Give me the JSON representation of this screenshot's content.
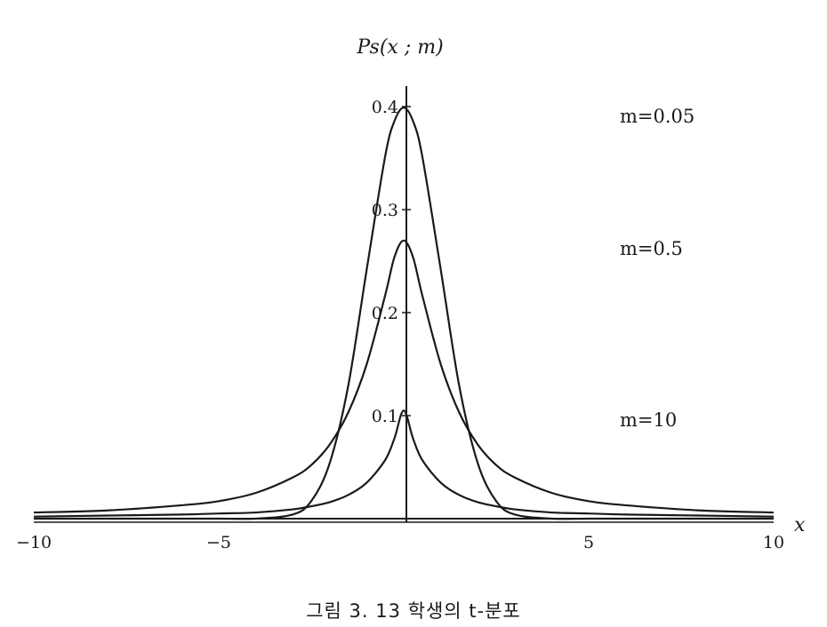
{
  "caption": "그림 3. 13 학생의 t-분포",
  "chart_data": {
    "type": "line",
    "title": "",
    "xlabel": "x",
    "ylabel": "Ps(x ; m)",
    "xlim": [
      -10,
      10
    ],
    "ylim": [
      0,
      0.4
    ],
    "x_ticks": [
      -10,
      -5,
      5,
      10
    ],
    "x_tick_labels": [
      "−10",
      "−5",
      "5",
      "10"
    ],
    "y_ticks": [
      0.1,
      0.2,
      0.3,
      0.4
    ],
    "y_tick_labels": [
      "0.1",
      "0.2",
      "0.3",
      "0.4"
    ],
    "grid": false,
    "x": [
      -10,
      -8,
      -6,
      -5,
      -4,
      -3,
      -2.5,
      -2,
      -1.5,
      -1,
      -0.5,
      -0.25,
      0,
      0.25,
      0.5,
      1,
      1.5,
      2,
      2.5,
      3,
      4,
      5,
      6,
      8,
      10
    ],
    "series": [
      {
        "name": "m=0.05",
        "label_position": "top",
        "values": [
          0.0,
          0.0,
          0.0,
          0.0,
          0.0,
          0.004,
          0.017,
          0.054,
          0.129,
          0.242,
          0.352,
          0.386,
          0.399,
          0.386,
          0.352,
          0.242,
          0.129,
          0.054,
          0.017,
          0.004,
          0.0,
          0.0,
          0.0,
          0.0,
          0.0
        ]
      },
      {
        "name": "m=0.5",
        "label_position": "middle",
        "values": [
          0.006,
          0.008,
          0.013,
          0.017,
          0.025,
          0.04,
          0.052,
          0.072,
          0.103,
          0.15,
          0.217,
          0.254,
          0.27,
          0.254,
          0.217,
          0.15,
          0.103,
          0.072,
          0.052,
          0.04,
          0.025,
          0.017,
          0.013,
          0.008,
          0.006
        ]
      },
      {
        "name": "m=10",
        "label_position": "bottom",
        "values": [
          0.002,
          0.003,
          0.004,
          0.005,
          0.006,
          0.009,
          0.012,
          0.016,
          0.023,
          0.035,
          0.057,
          0.078,
          0.105,
          0.078,
          0.057,
          0.035,
          0.023,
          0.016,
          0.012,
          0.009,
          0.006,
          0.005,
          0.004,
          0.003,
          0.002
        ]
      }
    ]
  }
}
